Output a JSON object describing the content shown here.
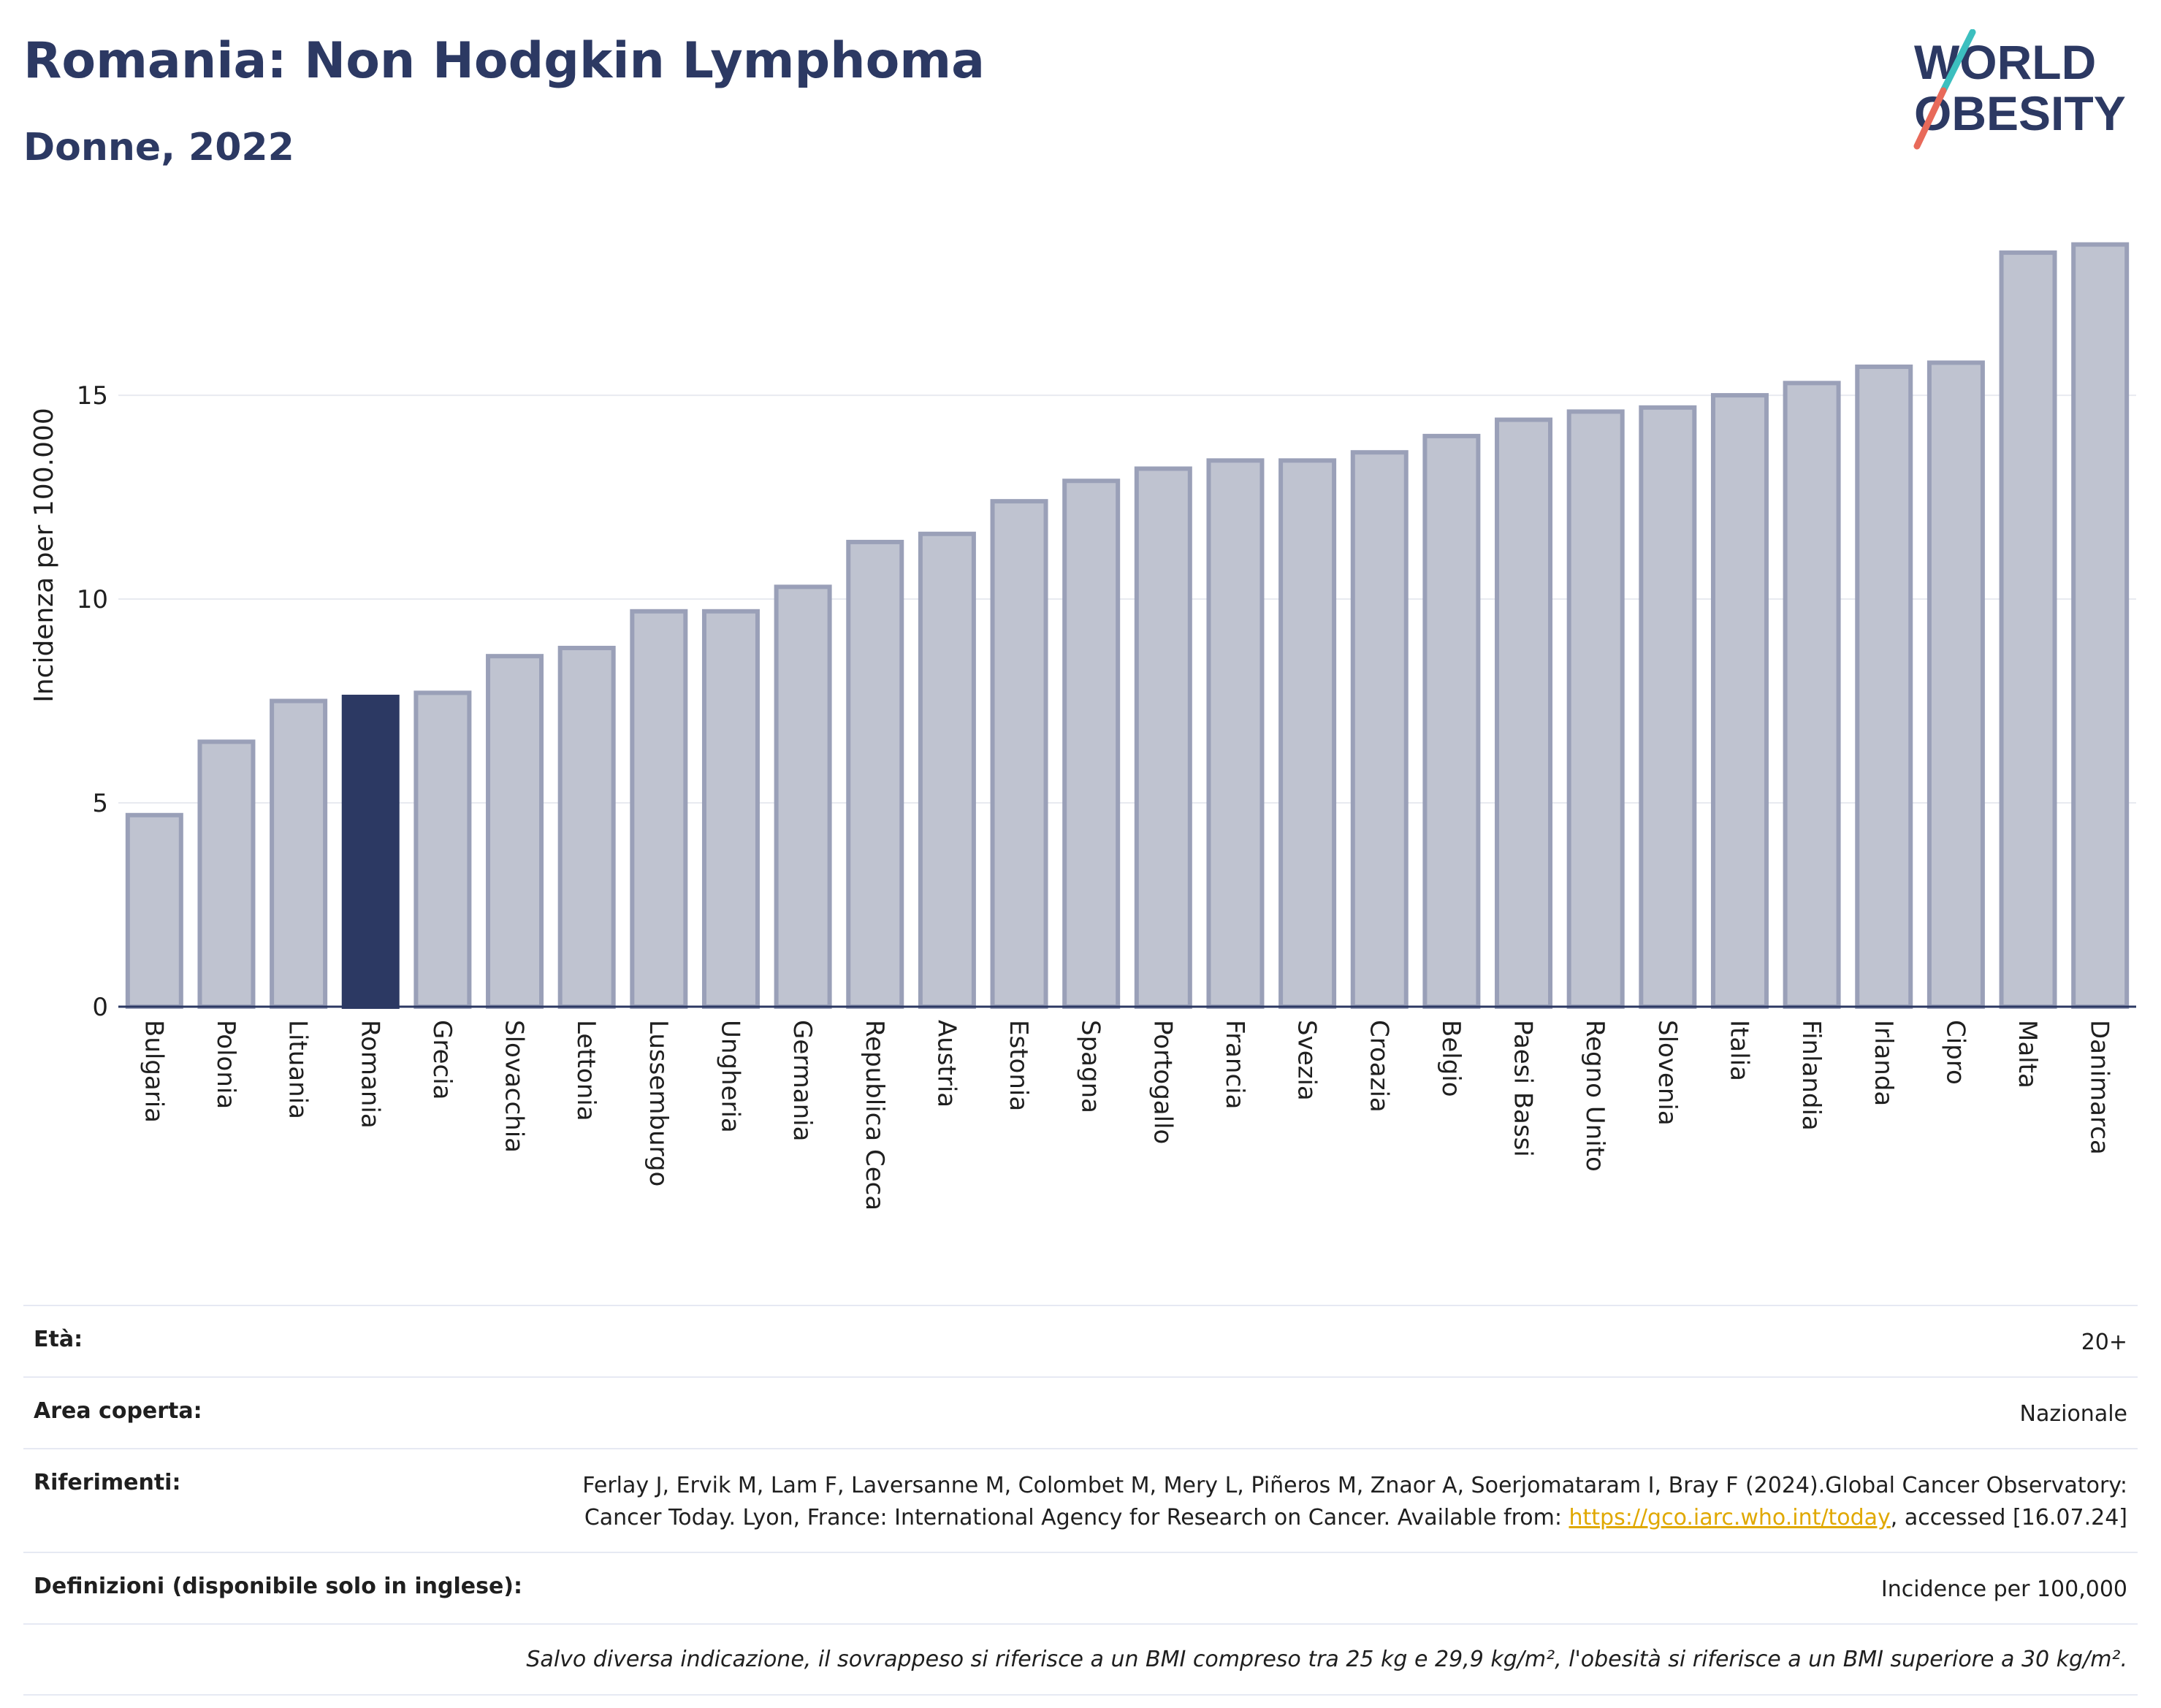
{
  "header": {
    "title": "Romania: Non Hodgkin Lymphoma",
    "subtitle": "Donne, 2022"
  },
  "logo": {
    "line1": "WORLD",
    "line2": "OBESITY"
  },
  "colors": {
    "highlight": "#2c3963",
    "bar": "#bfc3d0",
    "bar_border": "#9aa0b8",
    "grid": "#e8eaf0",
    "title": "#2c3963",
    "logo_teal": "#3cbfbf",
    "logo_coral": "#e86a5a"
  },
  "chart_data": {
    "type": "bar",
    "title": "Romania: Non Hodgkin Lymphoma",
    "subtitle": "Donne, 2022",
    "ylabel": "Incidenza per 100.000",
    "xlabel": "",
    "ylim": [
      0,
      19.5
    ],
    "yticks": [
      0,
      5,
      10,
      15
    ],
    "grid": true,
    "highlight": "Romania",
    "categories": [
      "Bulgaria",
      "Polonia",
      "Lituania",
      "Romania",
      "Grecia",
      "Slovacchia",
      "Lettonia",
      "Lussemburgo",
      "Ungheria",
      "Germania",
      "Republica Ceca",
      "Austria",
      "Estonia",
      "Spagna",
      "Portogallo",
      "Francia",
      "Svezia",
      "Croazia",
      "Belgio",
      "Paesi Bassi",
      "Regno Unito",
      "Slovenia",
      "Italia",
      "Finlandia",
      "Irlanda",
      "Cipro",
      "Malta",
      "Danimarca"
    ],
    "values": [
      4.7,
      6.5,
      7.5,
      7.6,
      7.7,
      8.6,
      8.8,
      9.7,
      9.7,
      10.3,
      11.4,
      11.6,
      12.4,
      12.9,
      13.2,
      13.4,
      13.4,
      13.6,
      14.0,
      14.4,
      14.6,
      14.7,
      15.0,
      15.3,
      15.7,
      15.8,
      18.5,
      18.7
    ]
  },
  "info": {
    "age_label": "Età:",
    "age_value": "20+",
    "area_label": "Area coperta:",
    "area_value": "Nazionale",
    "refs_label": "Riferimenti:",
    "refs_text_1": "Ferlay J, Ervik M, Lam F, Laversanne M, Colombet M, Mery L, Piñeros M, Znaor A, Soerjomataram I, Bray F (2024).Global Cancer Observatory: Cancer Today. Lyon, France: International Agency for Research on Cancer. Available from: ",
    "refs_link": "https://gco.iarc.who.int/today",
    "refs_text_2": ", accessed [16.07.24]",
    "defs_label": "Definizioni (disponibile solo in inglese):",
    "defs_value": "Incidence per 100,000",
    "note": "Salvo diversa indicazione, il sovrappeso si riferisce a un BMI compreso tra 25 kg e 29,9 kg/m², l'obesità si riferisce a un BMI superiore a 30 kg/m²."
  }
}
